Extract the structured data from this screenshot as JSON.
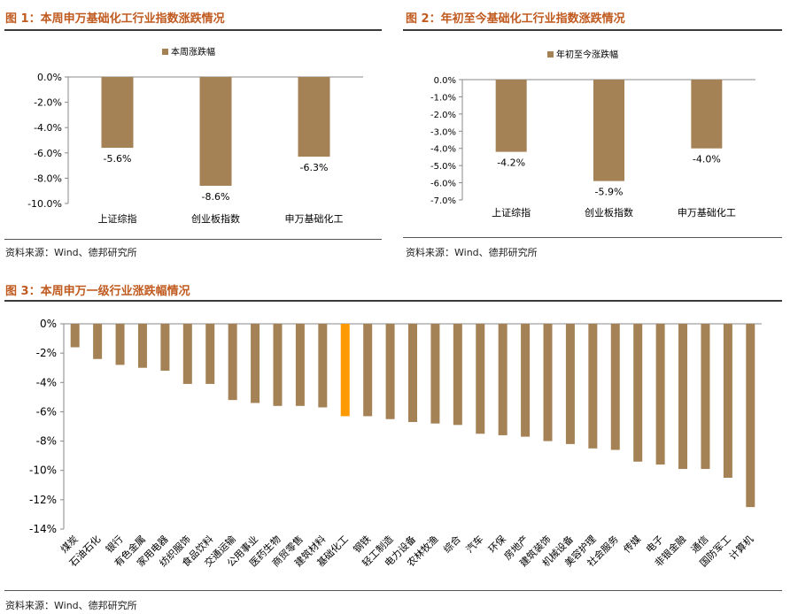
{
  "colors": {
    "bar": "#a58255",
    "highlight": "#ff9900",
    "title": "#c05a1f"
  },
  "figures": [
    {
      "title": "图 1：本周申万基础化工行业指数涨跌情况",
      "source": "资料来源：Wind、德邦研究所"
    },
    {
      "title": "图 2：年初至今基础化工行业指数涨跌情况",
      "source": "资料来源：Wind、德邦研究所"
    },
    {
      "title": "图 3：本周申万一级行业涨跌幅情况",
      "source": "资料来源：Wind、德邦研究所"
    }
  ],
  "chart_data": [
    {
      "type": "bar",
      "legend": "本周涨跌幅",
      "legend_position": "top",
      "categories": [
        "上证综指",
        "创业板指数",
        "申万基础化工"
      ],
      "values": [
        -5.6,
        -8.6,
        -6.3
      ],
      "data_labels": [
        "-5.6%",
        "-8.6%",
        "-6.3%"
      ],
      "ylim": [
        -10,
        0
      ],
      "yticks": [
        "0.0%",
        "-2.0%",
        "-4.0%",
        "-6.0%",
        "-8.0%",
        "-10.0%"
      ],
      "ytick_values": [
        0,
        -2,
        -4,
        -6,
        -8,
        -10
      ],
      "grid": false
    },
    {
      "type": "bar",
      "legend": "年初至今涨跌幅",
      "legend_position": "top",
      "categories": [
        "上证综指",
        "创业板指数",
        "申万基础化工"
      ],
      "values": [
        -4.2,
        -5.9,
        -4.0
      ],
      "data_labels": [
        "-4.2%",
        "-5.9%",
        "-4.0%"
      ],
      "ylim": [
        -7,
        0
      ],
      "yticks": [
        "0.0%",
        "-1.0%",
        "-2.0%",
        "-3.0%",
        "-4.0%",
        "-5.0%",
        "-6.0%",
        "-7.0%"
      ],
      "ytick_values": [
        0,
        -1,
        -2,
        -3,
        -4,
        -5,
        -6,
        -7
      ],
      "grid": false
    },
    {
      "type": "bar",
      "categories": [
        "煤炭",
        "石油石化",
        "银行",
        "有色金属",
        "家用电器",
        "纺织服饰",
        "食品饮料",
        "交通运输",
        "公用事业",
        "医药生物",
        "商贸零售",
        "建筑材料",
        "基础化工",
        "钢铁",
        "轻工制造",
        "电力设备",
        "农林牧渔",
        "综合",
        "汽车",
        "环保",
        "房地产",
        "建筑装饰",
        "机械设备",
        "美容护理",
        "社会服务",
        "传媒",
        "电子",
        "非银金融",
        "通信",
        "国防军工",
        "计算机"
      ],
      "values": [
        -1.6,
        -2.4,
        -2.8,
        -3.0,
        -3.2,
        -4.1,
        -4.1,
        -5.2,
        -5.4,
        -5.6,
        -5.6,
        -5.7,
        -6.3,
        -6.3,
        -6.5,
        -6.7,
        -6.8,
        -6.9,
        -7.5,
        -7.6,
        -7.7,
        -8.0,
        -8.2,
        -8.5,
        -8.6,
        -9.4,
        -9.6,
        -9.9,
        -9.9,
        -10.5,
        -12.5
      ],
      "highlight_category": "基础化工",
      "ylim": [
        -14,
        0
      ],
      "yticks": [
        "0%",
        "-2%",
        "-4%",
        "-6%",
        "-8%",
        "-10%",
        "-12%",
        "-14%"
      ],
      "ytick_values": [
        0,
        -2,
        -4,
        -6,
        -8,
        -10,
        -12,
        -14
      ],
      "grid": false
    }
  ]
}
